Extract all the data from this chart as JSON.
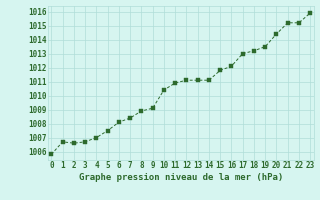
{
  "x": [
    0,
    1,
    2,
    3,
    4,
    5,
    6,
    7,
    8,
    9,
    10,
    11,
    12,
    13,
    14,
    15,
    16,
    17,
    18,
    19,
    20,
    21,
    22,
    23
  ],
  "y": [
    1005.8,
    1006.7,
    1006.6,
    1006.7,
    1007.0,
    1007.5,
    1008.1,
    1008.4,
    1008.9,
    1009.1,
    1010.4,
    1010.9,
    1011.1,
    1011.1,
    1011.1,
    1011.8,
    1012.1,
    1013.0,
    1013.2,
    1013.5,
    1014.4,
    1015.2,
    1015.2,
    1015.9
  ],
  "line_color": "#2d6a2d",
  "marker_color": "#2d6a2d",
  "bg_color": "#d6f5f0",
  "grid_color": "#b0ddd8",
  "xlabel": "Graphe pression niveau de la mer (hPa)",
  "ytick_labels": [
    "1006",
    "1007",
    "1008",
    "1009",
    "1010",
    "1011",
    "1012",
    "1013",
    "1014",
    "1015",
    "1016"
  ],
  "ytick_values": [
    1006,
    1007,
    1008,
    1009,
    1010,
    1011,
    1012,
    1013,
    1014,
    1015,
    1016
  ],
  "xlim": [
    0,
    23
  ],
  "ylim": [
    1005.4,
    1016.4
  ],
  "xlabel_fontsize": 6.5,
  "tick_fontsize": 5.5
}
